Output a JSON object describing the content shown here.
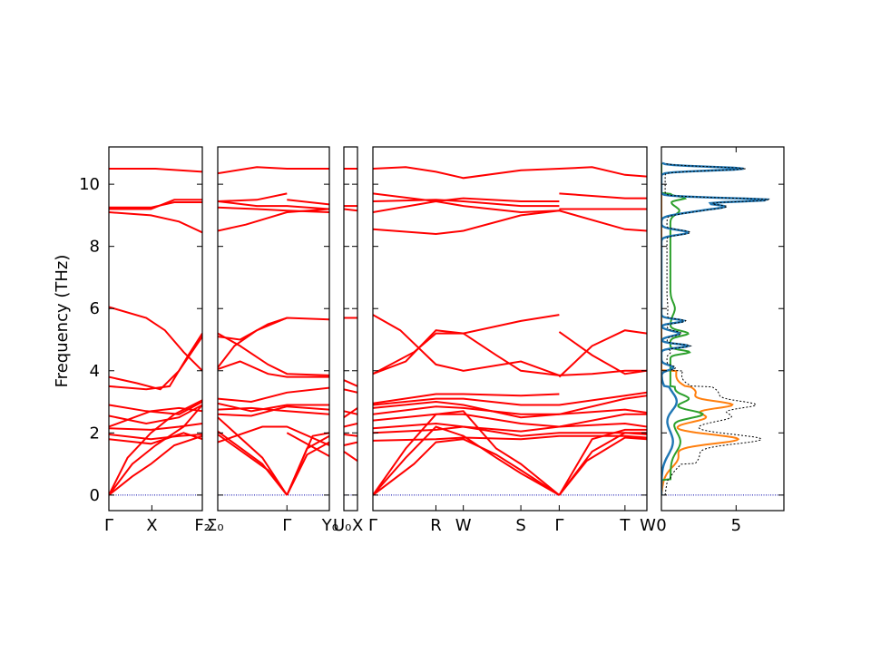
{
  "chart_data": {
    "type": "line",
    "title": "",
    "ylabel": "Frequency (THz)",
    "ylim": [
      -0.5,
      11.2
    ],
    "yticks": [
      0,
      2,
      4,
      6,
      8,
      10
    ],
    "grid": false,
    "band_color": "#ff0000",
    "zero_line_color": "#0000aa",
    "segments": [
      {
        "kpoint_labels": [
          "Γ",
          "X",
          "F₂"
        ],
        "kpoint_ticks": [
          0,
          0.46,
          1.0
        ]
      },
      {
        "kpoint_labels": [
          "Σ₀",
          "Γ",
          "Y₀"
        ],
        "kpoint_ticks": [
          0,
          0.62,
          1.0
        ]
      },
      {
        "kpoint_labels": [
          "U₀",
          "X"
        ],
        "kpoint_ticks": [
          0,
          1.0
        ]
      },
      {
        "kpoint_labels": [
          "Γ",
          "R",
          "W",
          "S",
          "Γ",
          "T",
          "W"
        ],
        "kpoint_ticks": [
          0,
          0.23,
          0.33,
          0.54,
          0.68,
          0.92,
          1.0
        ]
      }
    ],
    "dos_panel": {
      "xticks": [
        0,
        5
      ],
      "xlim": [
        0,
        8.2
      ],
      "series": [
        {
          "color": "#000000"
        },
        {
          "color": "#1f77b4"
        },
        {
          "color": "#ff7f0e"
        },
        {
          "color": "#2ca02c"
        }
      ]
    }
  }
}
